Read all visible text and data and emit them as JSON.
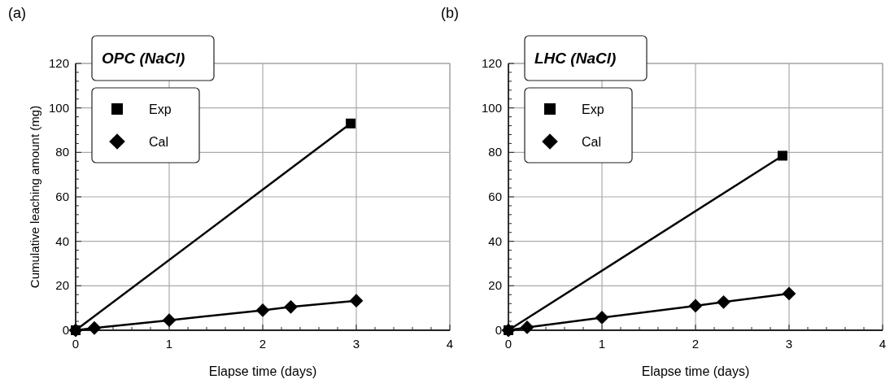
{
  "chart_data": [
    {
      "type": "line",
      "title": "OPC (NaCl)",
      "annotations": [
        "(a)"
      ],
      "xlabel": "Elapse time (days)",
      "ylabel": "Cumulative leaching amount (mg)",
      "xlim": [
        0,
        4
      ],
      "xticks": [
        0,
        1,
        2,
        3,
        4
      ],
      "ylim": [
        0,
        120
      ],
      "yticks": [
        0,
        20,
        40,
        60,
        80,
        100,
        120
      ],
      "grid": true,
      "legend": "top left",
      "series": [
        {
          "name": "Exp",
          "color": "#000000",
          "marker": "square",
          "x": [
            0,
            2.94
          ],
          "values": [
            0,
            93
          ]
        },
        {
          "name": "Cal",
          "color": "#000000",
          "marker": "diamond",
          "x": [
            0,
            0.2,
            1,
            2,
            2.3,
            3
          ],
          "values": [
            0,
            1,
            4.5,
            9,
            10.5,
            13.3
          ]
        }
      ]
    },
    {
      "type": "line",
      "title": "LHC (NaCl)",
      "annotations": [
        "(b)"
      ],
      "xlabel": "Elapse time (days)",
      "xlim": [
        0,
        4
      ],
      "xticks": [
        0,
        1,
        2,
        3,
        4
      ],
      "ylim": [
        0,
        120
      ],
      "yticks": [
        0,
        20,
        40,
        60,
        80,
        100,
        120
      ],
      "grid": true,
      "legend": "top left",
      "series": [
        {
          "name": "Exp",
          "color": "#000000",
          "marker": "square",
          "x": [
            0,
            2.93
          ],
          "values": [
            0,
            78.5
          ]
        },
        {
          "name": "Cal",
          "color": "#000000",
          "marker": "diamond",
          "x": [
            0,
            0.2,
            1,
            2,
            2.3,
            3
          ],
          "values": [
            0,
            1.3,
            5.7,
            11,
            12.7,
            16.5
          ]
        }
      ]
    }
  ]
}
